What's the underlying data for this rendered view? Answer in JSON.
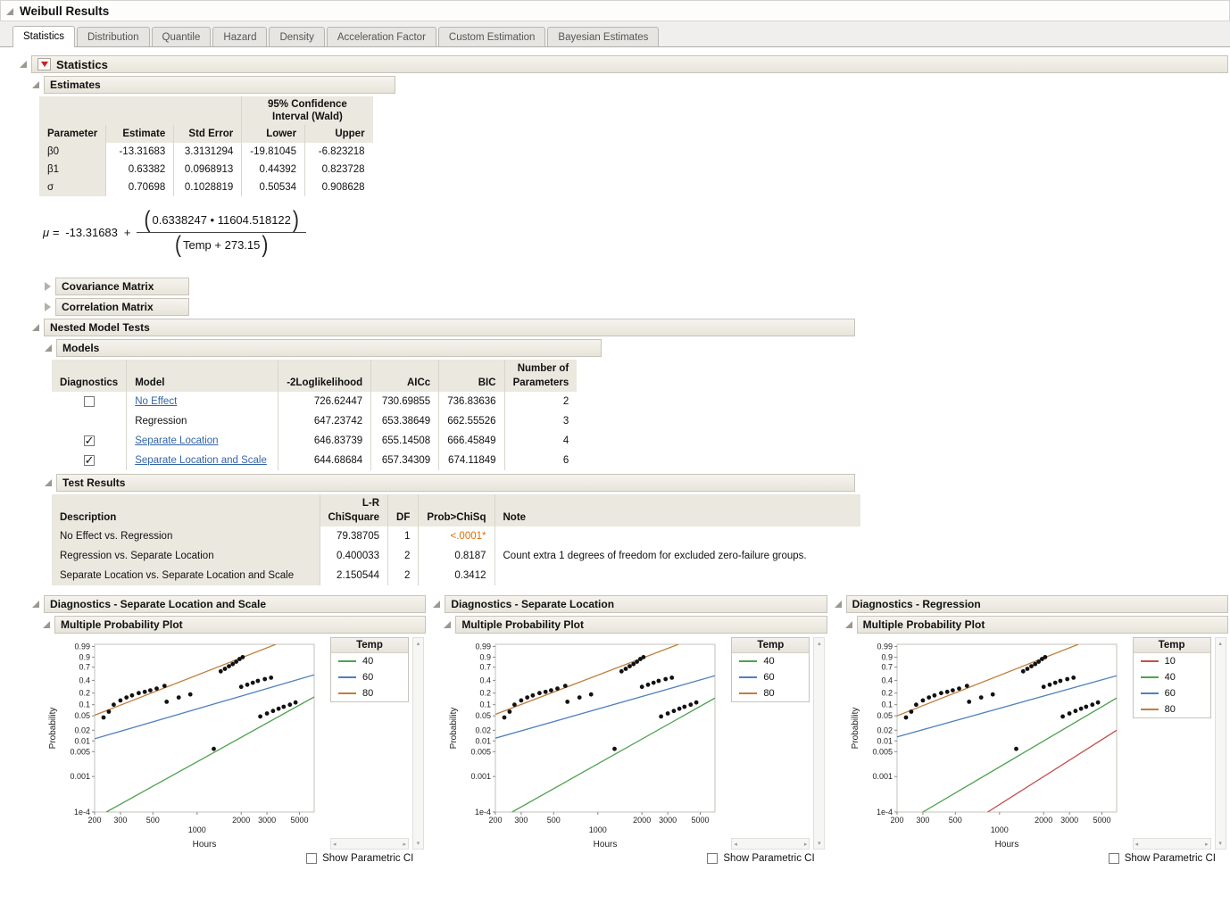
{
  "window": {
    "title": "Weibull Results"
  },
  "tabs": [
    {
      "label": "Statistics",
      "active": true
    },
    {
      "label": "Distribution"
    },
    {
      "label": "Quantile"
    },
    {
      "label": "Hazard"
    },
    {
      "label": "Density"
    },
    {
      "label": "Acceleration Factor"
    },
    {
      "label": "Custom Estimation"
    },
    {
      "label": "Bayesian Estimates"
    }
  ],
  "colors": {
    "link": "#3465a8",
    "significant_value": "#e07000",
    "header_bg": "#eae8df",
    "point": "#111111"
  },
  "statistics": {
    "title": "Statistics",
    "estimates": {
      "title": "Estimates",
      "ci_header": [
        "95% Confidence",
        "Interval (Wald)"
      ],
      "columns": {
        "parameter": "Parameter",
        "estimate": "Estimate",
        "std_error": "Std Error",
        "lower": "Lower",
        "upper": "Upper"
      },
      "rows": [
        {
          "parameter": "β0",
          "estimate": "-13.31683",
          "std_error": "3.3131294",
          "lower": "-19.81045",
          "upper": "-6.823218"
        },
        {
          "parameter": "β1",
          "estimate": "0.63382",
          "std_error": "0.0968913",
          "lower": "0.44392",
          "upper": "0.823728"
        },
        {
          "parameter": "σ",
          "estimate": "0.70698",
          "std_error": "0.1028819",
          "lower": "0.50534",
          "upper": "0.908628"
        }
      ],
      "formula": {
        "lhs": "μ =",
        "intercept": "-13.31683",
        "plus": "+",
        "lparen": "(",
        "rparen": ")",
        "numerator": "0.6338247 • 11604.518122",
        "denominator": "Temp + 273.15"
      }
    },
    "covariance": {
      "title": "Covariance Matrix"
    },
    "correlation": {
      "title": "Correlation Matrix"
    },
    "nested": {
      "title": "Nested Model Tests",
      "models": {
        "title": "Models",
        "columns": {
          "diagnostics": "Diagnostics",
          "model": "Model",
          "loglik": "-2Loglikelihood",
          "aicc": "AICc",
          "bic": "BIC",
          "nparams": [
            "Number of",
            "Parameters"
          ]
        },
        "rows": [
          {
            "checked": false,
            "model": "No Effect",
            "link": true,
            "loglik": "726.62447",
            "aicc": "730.69855",
            "bic": "736.83636",
            "nparams": "2"
          },
          {
            "model": "Regression",
            "link": false,
            "loglik": "647.23742",
            "aicc": "653.38649",
            "bic": "662.55526",
            "nparams": "3"
          },
          {
            "checked": true,
            "model": "Separate Location",
            "link": true,
            "loglik": "646.83739",
            "aicc": "655.14508",
            "bic": "666.45849",
            "nparams": "4"
          },
          {
            "checked": true,
            "model": "Separate Location and Scale",
            "link": true,
            "loglik": "644.68684",
            "aicc": "657.34309",
            "bic": "674.11849",
            "nparams": "6"
          }
        ]
      },
      "test_results": {
        "title": "Test Results",
        "columns": {
          "description": "Description",
          "chisq": [
            "L-R",
            "ChiSquare"
          ],
          "df": "DF",
          "prob": "Prob>ChiSq",
          "note": "Note"
        },
        "rows": [
          {
            "description": "No Effect vs. Regression",
            "chisq": "79.38705",
            "df": "1",
            "prob": "<.0001*",
            "prob_flag": true,
            "note": ""
          },
          {
            "description": "Regression vs. Separate Location",
            "chisq": "0.400033",
            "df": "2",
            "prob": "0.8187",
            "note": "Count extra 1 degrees of freedom for excluded zero-failure groups."
          },
          {
            "description": "Separate Location vs. Separate Location and Scale",
            "chisq": "2.150544",
            "df": "2",
            "prob": "0.3412",
            "note": ""
          }
        ]
      }
    }
  },
  "diagnostics": {
    "show_ci_label": "Show Parametric CI",
    "panels": [
      {
        "title": "Diagnostics - Separate Location and Scale"
      },
      {
        "title": "Diagnostics - Separate Location"
      },
      {
        "title": "Diagnostics - Regression"
      }
    ]
  },
  "chart_data": [
    {
      "type": "scatter",
      "title": "Multiple Probability Plot",
      "xlabel": "Hours",
      "ylabel": "Probability",
      "x_scale": "log",
      "y_scale": "weibull-probability",
      "xlim": [
        200,
        6300
      ],
      "ylim": [
        0.0001,
        0.995
      ],
      "x_ticks": [
        200,
        300,
        500,
        1000,
        2000,
        3000,
        5000
      ],
      "y_ticks": [
        0.99,
        0.9,
        0.7,
        0.4,
        0.2,
        0.1,
        0.05,
        0.02,
        0.01,
        0.005,
        0.001,
        0.0001
      ],
      "y_tick_labels": [
        "0.99",
        "0.9",
        "0.7",
        "0.4",
        "0.2",
        "0.1",
        "0.05",
        "0.02",
        "0.01",
        "0.005",
        "0.001",
        "1e-4"
      ],
      "grid": false,
      "legend_title": "Temp",
      "legend_position": "right",
      "series": [
        {
          "name": "40",
          "color": "#4ea24e",
          "line": [
            [
              240,
              0.0001
            ],
            [
              6300,
              0.16
            ]
          ]
        },
        {
          "name": "60",
          "color": "#4f81bd",
          "line": [
            [
              200,
              0.0115
            ],
            [
              6300,
              0.52
            ]
          ]
        },
        {
          "name": "80",
          "color": "#c07f3e",
          "line": [
            [
              200,
              0.052
            ],
            [
              3450,
              0.995
            ]
          ]
        }
      ],
      "points": [
        [
          230,
          0.045
        ],
        [
          250,
          0.065
        ],
        [
          270,
          0.1
        ],
        [
          300,
          0.13
        ],
        [
          330,
          0.155
        ],
        [
          360,
          0.175
        ],
        [
          400,
          0.2
        ],
        [
          440,
          0.215
        ],
        [
          480,
          0.235
        ],
        [
          530,
          0.26
        ],
        [
          600,
          0.3
        ],
        [
          620,
          0.12
        ],
        [
          750,
          0.155
        ],
        [
          900,
          0.185
        ],
        [
          1300,
          0.006
        ],
        [
          1450,
          0.6
        ],
        [
          1550,
          0.66
        ],
        [
          1650,
          0.72
        ],
        [
          1750,
          0.77
        ],
        [
          1850,
          0.82
        ],
        [
          1950,
          0.87
        ],
        [
          2050,
          0.9
        ],
        [
          2000,
          0.285
        ],
        [
          2200,
          0.32
        ],
        [
          2400,
          0.355
        ],
        [
          2600,
          0.39
        ],
        [
          2900,
          0.425
        ],
        [
          3200,
          0.455
        ],
        [
          2700,
          0.048
        ],
        [
          3000,
          0.058
        ],
        [
          3300,
          0.068
        ],
        [
          3600,
          0.078
        ],
        [
          3900,
          0.088
        ],
        [
          4300,
          0.1
        ],
        [
          4700,
          0.115
        ]
      ]
    },
    {
      "type": "scatter",
      "title": "Multiple Probability Plot",
      "xlabel": "Hours",
      "ylabel": "Probability",
      "x_scale": "log",
      "y_scale": "weibull-probability",
      "xlim": [
        200,
        6300
      ],
      "ylim": [
        0.0001,
        0.995
      ],
      "x_ticks": [
        200,
        300,
        500,
        1000,
        2000,
        3000,
        5000
      ],
      "y_ticks": [
        0.99,
        0.9,
        0.7,
        0.4,
        0.2,
        0.1,
        0.05,
        0.02,
        0.01,
        0.005,
        0.001,
        0.0001
      ],
      "y_tick_labels": [
        "0.99",
        "0.9",
        "0.7",
        "0.4",
        "0.2",
        "0.1",
        "0.05",
        "0.02",
        "0.01",
        "0.005",
        "0.001",
        "1e-4"
      ],
      "grid": false,
      "legend_title": "Temp",
      "legend_position": "right",
      "series": [
        {
          "name": "40",
          "color": "#4ea24e",
          "line": [
            [
              260,
              0.0001
            ],
            [
              6300,
              0.15
            ]
          ]
        },
        {
          "name": "60",
          "color": "#4f81bd",
          "line": [
            [
              200,
              0.012
            ],
            [
              6300,
              0.5
            ]
          ]
        },
        {
          "name": "80",
          "color": "#c07f3e",
          "line": [
            [
              200,
              0.055
            ],
            [
              3550,
              0.995
            ]
          ]
        }
      ],
      "points": [
        [
          230,
          0.045
        ],
        [
          250,
          0.065
        ],
        [
          270,
          0.1
        ],
        [
          300,
          0.13
        ],
        [
          330,
          0.155
        ],
        [
          360,
          0.175
        ],
        [
          400,
          0.2
        ],
        [
          440,
          0.215
        ],
        [
          480,
          0.235
        ],
        [
          530,
          0.26
        ],
        [
          600,
          0.3
        ],
        [
          620,
          0.12
        ],
        [
          750,
          0.155
        ],
        [
          900,
          0.185
        ],
        [
          1300,
          0.006
        ],
        [
          1450,
          0.6
        ],
        [
          1550,
          0.66
        ],
        [
          1650,
          0.72
        ],
        [
          1750,
          0.77
        ],
        [
          1850,
          0.82
        ],
        [
          1950,
          0.87
        ],
        [
          2050,
          0.9
        ],
        [
          2000,
          0.285
        ],
        [
          2200,
          0.32
        ],
        [
          2400,
          0.355
        ],
        [
          2600,
          0.39
        ],
        [
          2900,
          0.425
        ],
        [
          3200,
          0.455
        ],
        [
          2700,
          0.048
        ],
        [
          3000,
          0.058
        ],
        [
          3300,
          0.068
        ],
        [
          3600,
          0.078
        ],
        [
          3900,
          0.088
        ],
        [
          4300,
          0.1
        ],
        [
          4700,
          0.115
        ]
      ]
    },
    {
      "type": "scatter",
      "title": "Multiple Probability Plot",
      "xlabel": "Hours",
      "ylabel": "Probability",
      "x_scale": "log",
      "y_scale": "weibull-probability",
      "xlim": [
        200,
        6300
      ],
      "ylim": [
        0.0001,
        0.995
      ],
      "x_ticks": [
        200,
        300,
        500,
        1000,
        2000,
        3000,
        5000
      ],
      "y_ticks": [
        0.99,
        0.9,
        0.7,
        0.4,
        0.2,
        0.1,
        0.05,
        0.02,
        0.01,
        0.005,
        0.001,
        0.0001
      ],
      "y_tick_labels": [
        "0.99",
        "0.9",
        "0.7",
        "0.4",
        "0.2",
        "0.1",
        "0.05",
        "0.02",
        "0.01",
        "0.005",
        "0.001",
        "1e-4"
      ],
      "grid": false,
      "legend_title": "Temp",
      "legend_position": "right",
      "series": [
        {
          "name": "10",
          "color": "#c0504d",
          "line": [
            [
              830,
              0.0001
            ],
            [
              6300,
              0.02
            ]
          ]
        },
        {
          "name": "40",
          "color": "#4ea24e",
          "line": [
            [
              300,
              0.0001
            ],
            [
              6300,
              0.15
            ]
          ]
        },
        {
          "name": "60",
          "color": "#4f81bd",
          "line": [
            [
              200,
              0.013
            ],
            [
              6300,
              0.5
            ]
          ]
        },
        {
          "name": "80",
          "color": "#c07f3e",
          "line": [
            [
              200,
              0.05
            ],
            [
              3450,
              0.995
            ]
          ]
        }
      ],
      "points": [
        [
          230,
          0.045
        ],
        [
          250,
          0.065
        ],
        [
          270,
          0.1
        ],
        [
          300,
          0.13
        ],
        [
          330,
          0.155
        ],
        [
          360,
          0.175
        ],
        [
          400,
          0.2
        ],
        [
          440,
          0.215
        ],
        [
          480,
          0.235
        ],
        [
          530,
          0.26
        ],
        [
          600,
          0.3
        ],
        [
          620,
          0.12
        ],
        [
          750,
          0.155
        ],
        [
          900,
          0.185
        ],
        [
          1300,
          0.006
        ],
        [
          1450,
          0.6
        ],
        [
          1550,
          0.66
        ],
        [
          1650,
          0.72
        ],
        [
          1750,
          0.77
        ],
        [
          1850,
          0.82
        ],
        [
          1950,
          0.87
        ],
        [
          2050,
          0.9
        ],
        [
          2000,
          0.285
        ],
        [
          2200,
          0.32
        ],
        [
          2400,
          0.355
        ],
        [
          2600,
          0.39
        ],
        [
          2900,
          0.425
        ],
        [
          3200,
          0.455
        ],
        [
          2700,
          0.048
        ],
        [
          3000,
          0.058
        ],
        [
          3300,
          0.068
        ],
        [
          3600,
          0.078
        ],
        [
          3900,
          0.088
        ],
        [
          4300,
          0.1
        ],
        [
          4700,
          0.115
        ]
      ]
    }
  ]
}
